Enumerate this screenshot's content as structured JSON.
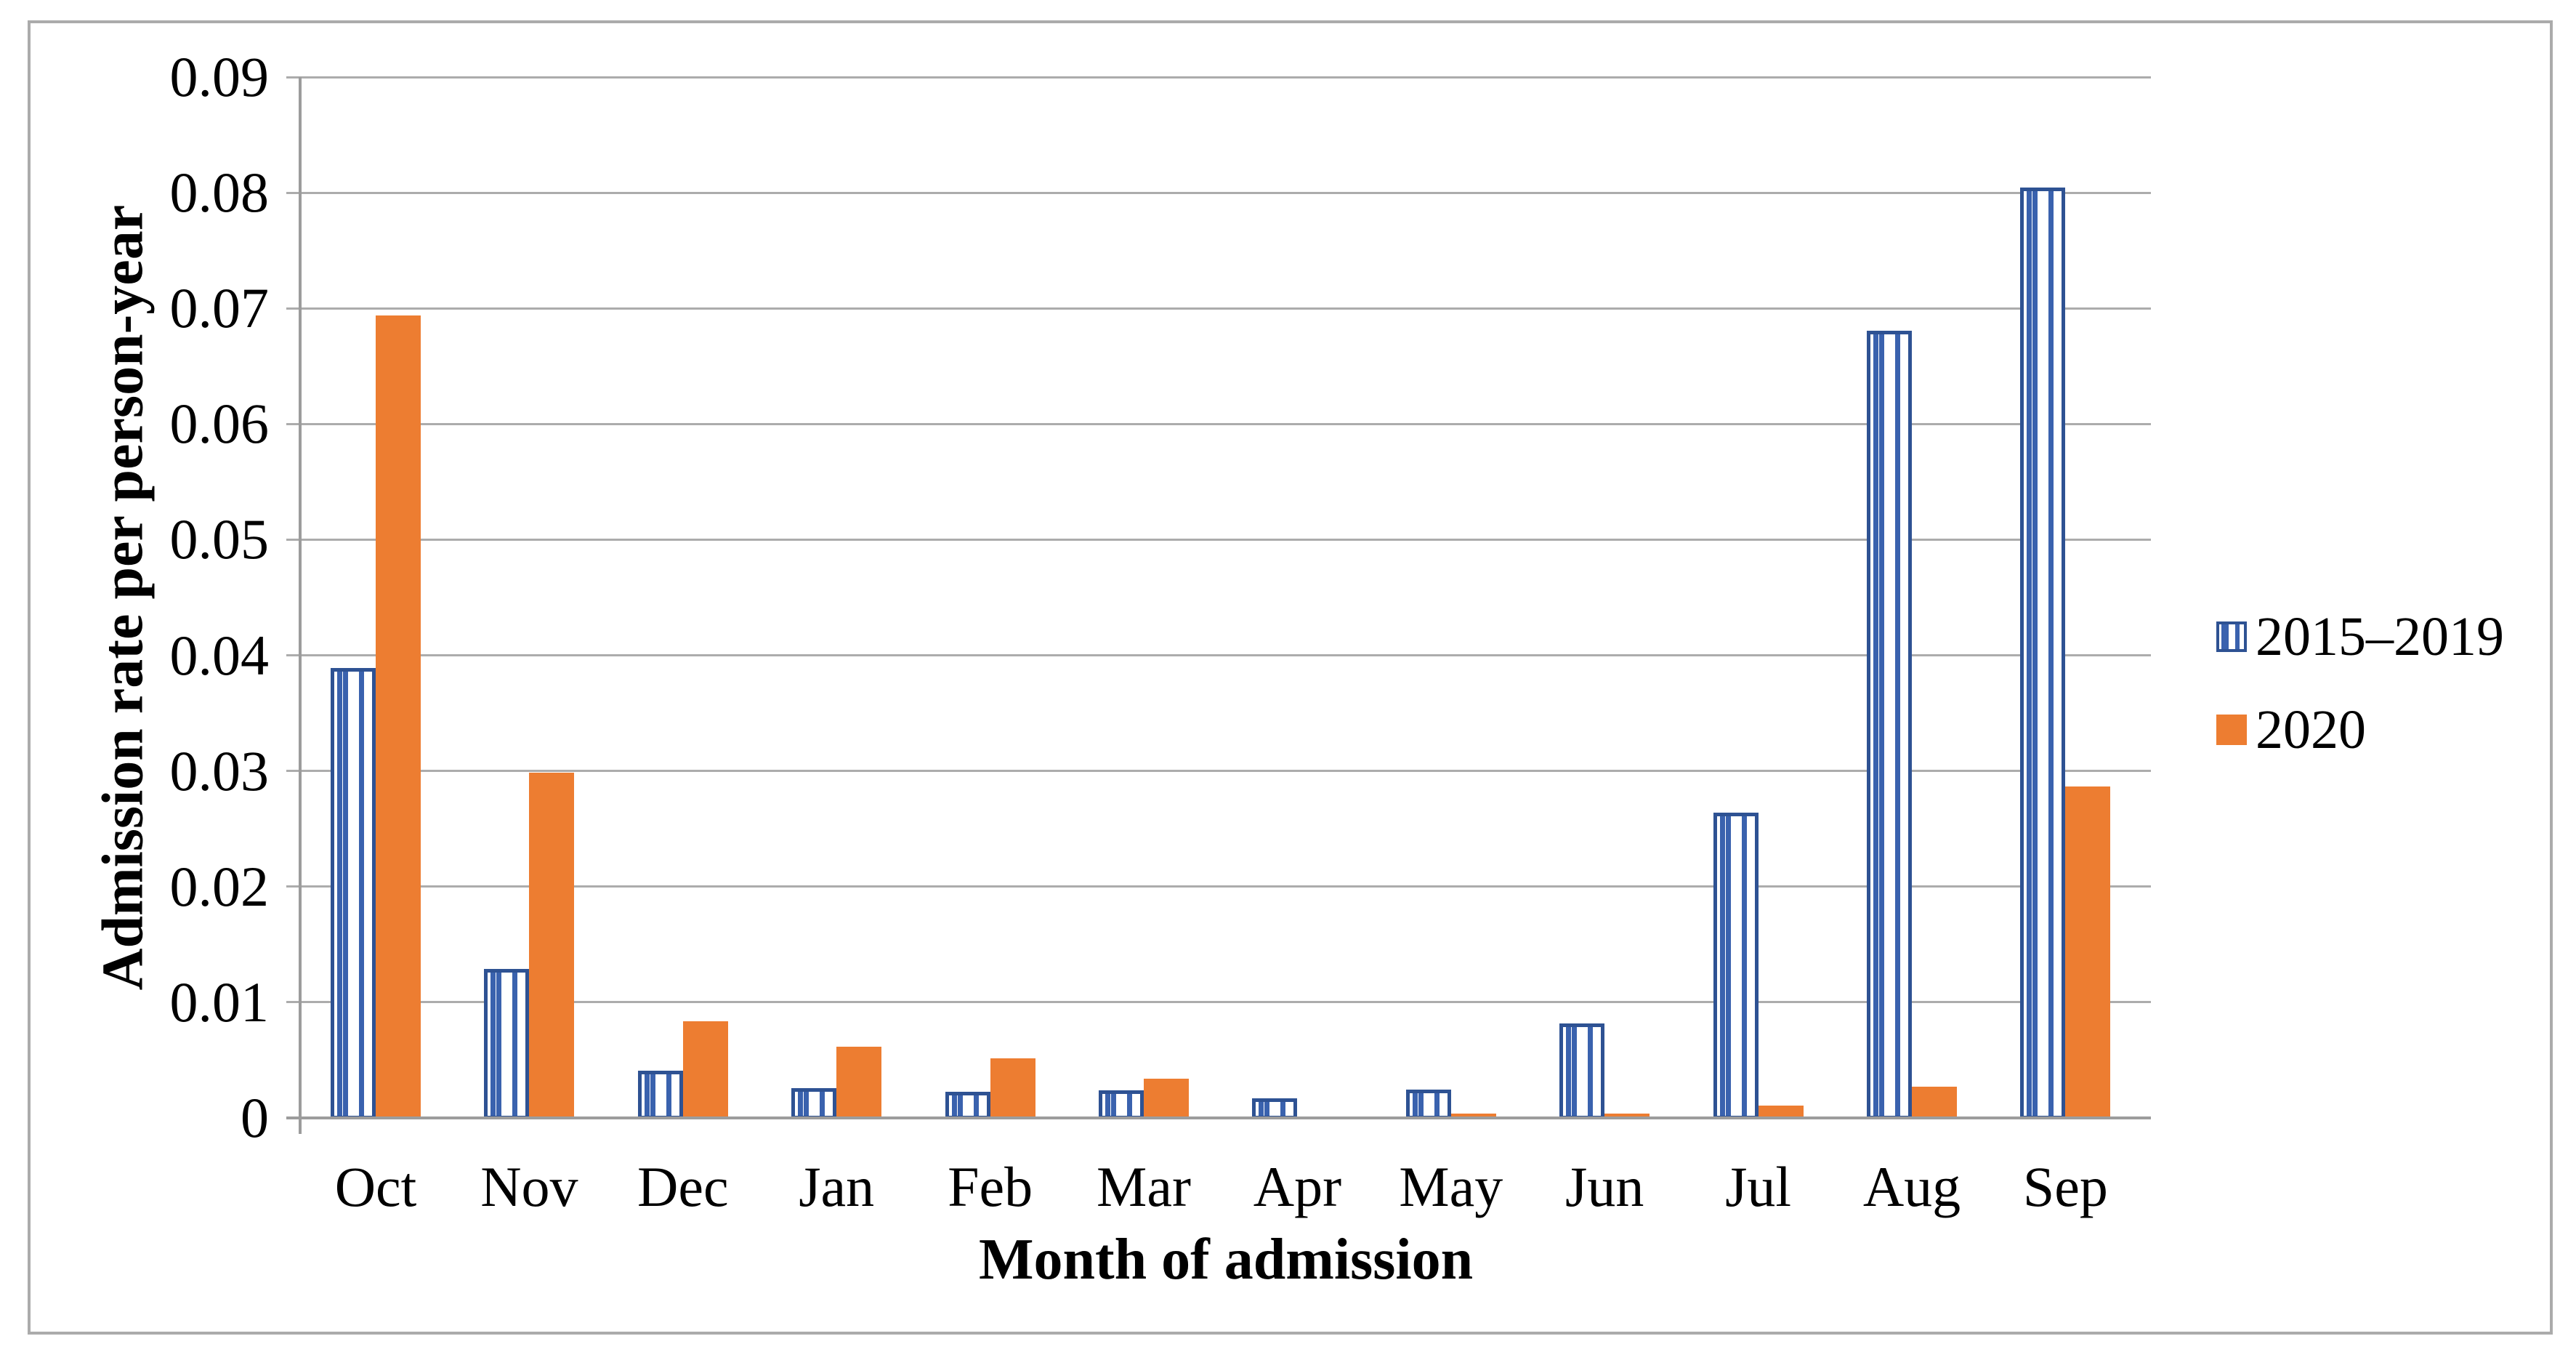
{
  "figure": {
    "background_color": "#ffffff",
    "border_color": "#ababab"
  },
  "chart_data": {
    "type": "bar",
    "title": "",
    "xlabel": "Month of admission",
    "ylabel": "Admission rate per person-year",
    "categories": [
      "Oct",
      "Nov",
      "Dec",
      "Jan",
      "Feb",
      "Mar",
      "Apr",
      "May",
      "Jun",
      "Jul",
      "Aug",
      "Sep"
    ],
    "series": [
      {
        "name": "2015–2019",
        "fill": "pattern-vertical-stripes",
        "edge_color": "#2e5293",
        "stripe_color": "#3a62ae",
        "values": [
          0.039,
          0.013,
          0.0042,
          0.0027,
          0.0024,
          0.0025,
          0.0018,
          0.0026,
          0.0083,
          0.0265,
          0.0682,
          0.0806
        ]
      },
      {
        "name": "2020",
        "fill": "solid",
        "color": "#ED7D31",
        "values": [
          0.0695,
          0.03,
          0.0085,
          0.0063,
          0.0053,
          0.0035,
          0.0001,
          0.0005,
          0.0005,
          0.0012,
          0.0028,
          0.0288
        ]
      }
    ],
    "ylim": [
      0,
      0.09
    ],
    "yticks": [
      "0.09",
      "0.08",
      "0.07",
      "0.06",
      "0.05",
      "0.04",
      "0.03",
      "0.02",
      "0.01",
      "0"
    ],
    "grid": true,
    "gridline_color": "#acacac",
    "axis_color": "#9c9c9c",
    "legend_position": "right-middle"
  }
}
